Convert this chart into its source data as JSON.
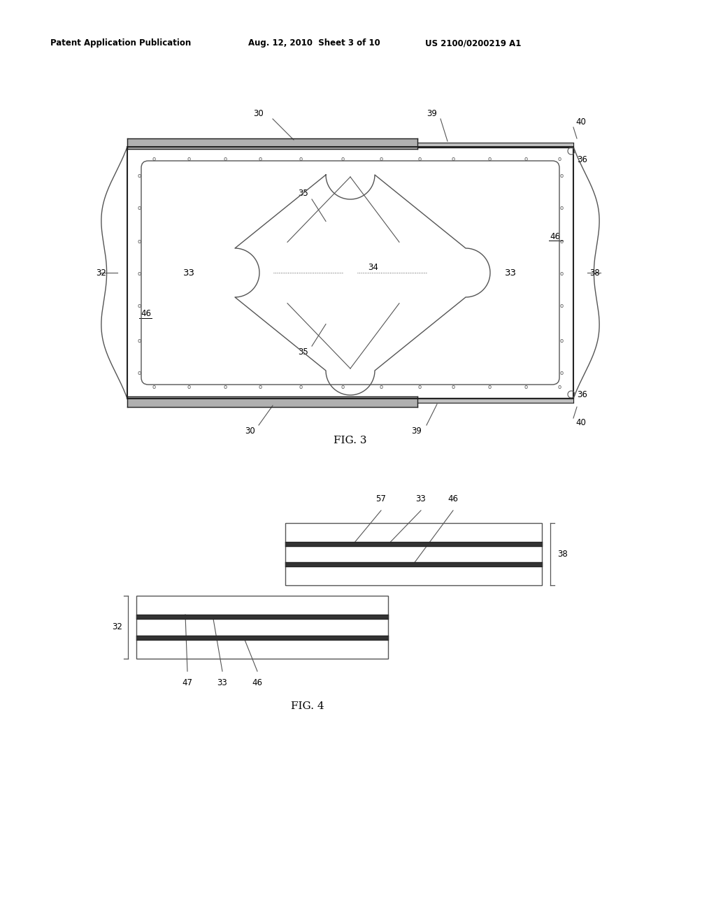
{
  "fig_width": 10.24,
  "fig_height": 13.2,
  "bg_color": "#ffffff",
  "header_text": "Patent Application Publication",
  "header_date": "Aug. 12, 2010  Sheet 3 of 10",
  "header_patent": "US 2100/0200219 A1",
  "fig3_label": "FIG. 3",
  "fig4_label": "FIG. 4",
  "lc": "#555555",
  "dc": "#222222",
  "tc": "#000000"
}
